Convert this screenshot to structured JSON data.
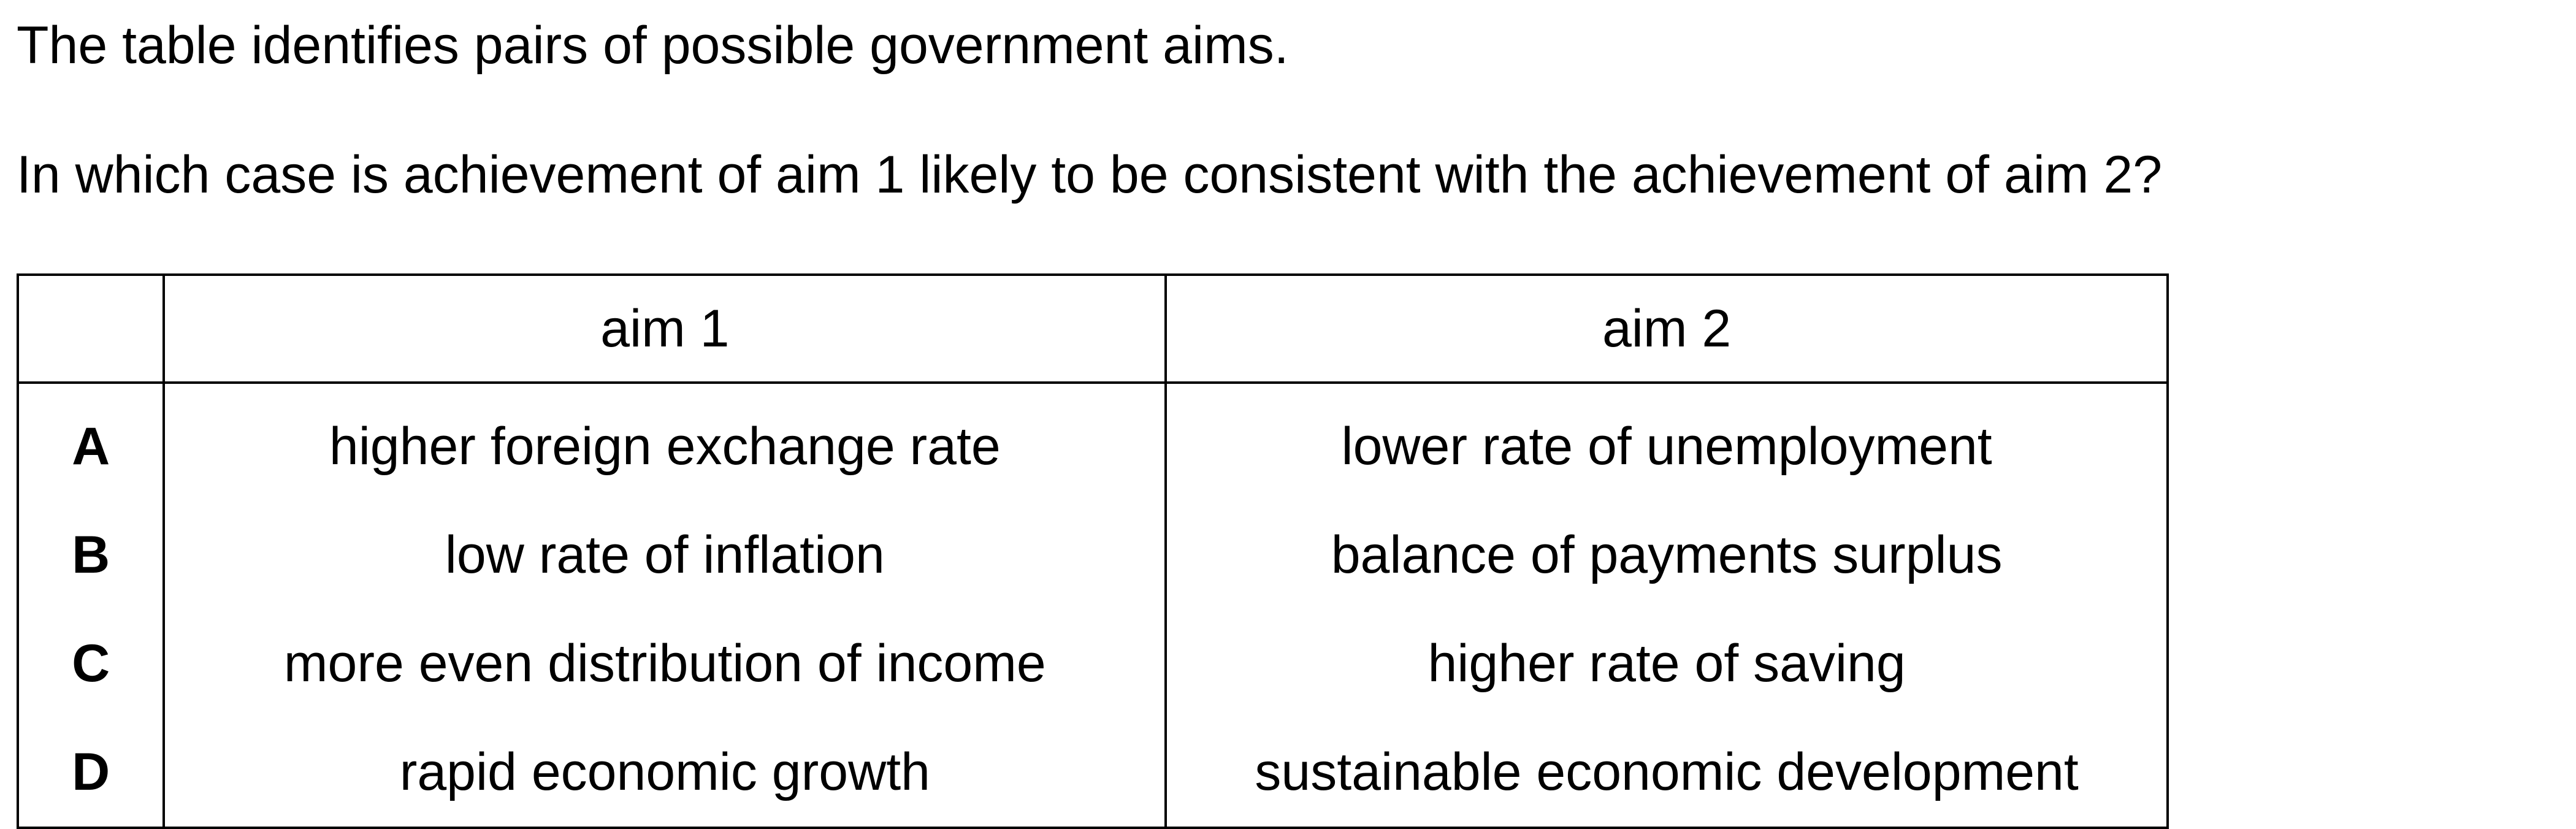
{
  "intro_text": "The table identifies pairs of possible government aims.",
  "question_text": "In which case is achievement of aim 1 likely to be consistent with the achievement of aim 2?",
  "table": {
    "headers": [
      "",
      "aim 1",
      "aim 2"
    ],
    "rows": [
      {
        "option": "A",
        "aim1": "higher foreign exchange rate",
        "aim2": "lower rate of unemployment"
      },
      {
        "option": "B",
        "aim1": "low rate of inflation",
        "aim2": "balance of payments surplus"
      },
      {
        "option": "C",
        "aim1": "more even distribution of income",
        "aim2": "higher rate of saving"
      },
      {
        "option": "D",
        "aim1": "rapid economic growth",
        "aim2": "sustainable economic development"
      }
    ]
  }
}
